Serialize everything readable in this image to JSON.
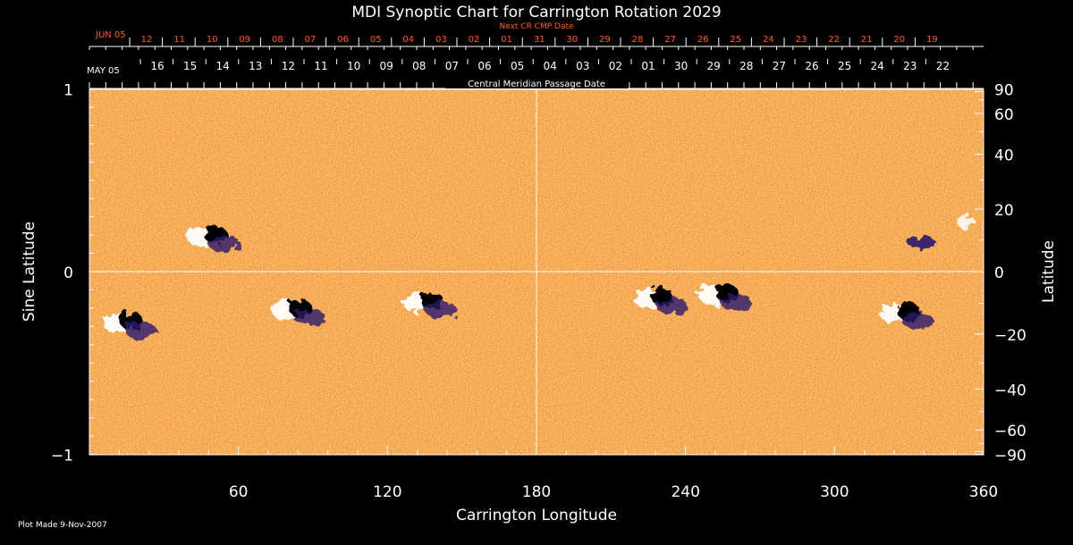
{
  "chart_data": {
    "type": "heatmap",
    "title": "MDI Synoptic Chart for Carrington Rotation 2029",
    "xlabel": "Carrington Longitude",
    "ylabel_left": "Sine Latitude",
    "ylabel_right": "Latitude",
    "xlim": [
      0,
      360
    ],
    "ylim": [
      -1,
      1
    ],
    "x_ticks": [
      "60",
      "120",
      "180",
      "240",
      "300",
      "360"
    ],
    "y_ticks_left": [
      "1",
      "0",
      "−1"
    ],
    "y_ticks_right": [
      "90",
      "60",
      "40",
      "20",
      "0",
      "−20",
      "−40",
      "−60",
      "−90"
    ],
    "top_axis_1": {
      "label": "Next CR CMP Date",
      "month_start": "JUN 05",
      "tick_labels": [
        "12",
        "11",
        "10",
        "09",
        "08",
        "07",
        "06",
        "05",
        "04",
        "03",
        "02",
        "01",
        "31",
        "30",
        "29",
        "28",
        "27",
        "26",
        "25",
        "24",
        "23",
        "22",
        "21",
        "20",
        "19"
      ]
    },
    "top_axis_2": {
      "label": "Central Meridian Passage Date",
      "month_start": "MAY 05",
      "tick_labels": [
        "16",
        "15",
        "14",
        "13",
        "12",
        "11",
        "10",
        "09",
        "08",
        "07",
        "06",
        "05",
        "04",
        "03",
        "02",
        "01",
        "30",
        "29",
        "28",
        "27",
        "26",
        "25",
        "24",
        "23",
        "22"
      ]
    },
    "colors": {
      "background": "#000000",
      "field_base": "#d9501c",
      "positive_polarity": "#ffffff",
      "negative_polarity": "#000000",
      "weak_negative": "#2a1a6e",
      "top_axis_1_text": "#ff5a1e"
    },
    "active_regions": [
      {
        "lon": 48,
        "sinlat": 0.2,
        "polarity": "bipolar"
      },
      {
        "lon": 14,
        "sinlat": -0.27,
        "polarity": "bipolar"
      },
      {
        "lon": 82,
        "sinlat": -0.2,
        "polarity": "bipolar"
      },
      {
        "lon": 135,
        "sinlat": -0.16,
        "polarity": "bipolar"
      },
      {
        "lon": 228,
        "sinlat": -0.14,
        "polarity": "bipolar"
      },
      {
        "lon": 254,
        "sinlat": -0.12,
        "polarity": "bipolar"
      },
      {
        "lon": 327,
        "sinlat": -0.22,
        "polarity": "bipolar"
      },
      {
        "lon": 353,
        "sinlat": 0.27,
        "polarity": "positive"
      },
      {
        "lon": 335,
        "sinlat": 0.16,
        "polarity": "negative"
      }
    ]
  },
  "footer": {
    "plot_made": "Plot Made  9-Nov-2007"
  }
}
